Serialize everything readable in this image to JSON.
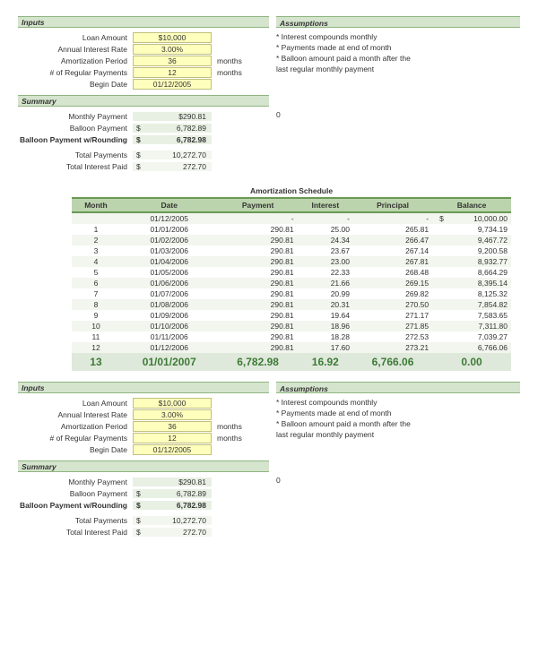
{
  "colors": {
    "headerBg": "#d5e4cd",
    "headerBorder": "#8fb580",
    "inputBg": "#ffffbd",
    "paleGreen": "#f2f6ee",
    "medGreen": "#e8f0e3",
    "tableHeaderBg": "#bcd4ad",
    "tableBorder": "#6a9a55",
    "totalsBg": "#dfe9db",
    "totalsText": "#3d7a36"
  },
  "fontsize": {
    "base": 8.5,
    "totals": 12
  },
  "inputs": {
    "header": "Inputs",
    "loanAmountLabel": "Loan Amount",
    "loanAmount": "$10,000",
    "rateLabel": "Annual Interest Rate",
    "rate": "3.00%",
    "amortLabel": "Amortization Period",
    "amortPeriod": "36",
    "amortUnit": "months",
    "regLabel": "# of Regular Payments",
    "regPayments": "12",
    "regUnit": "months",
    "beginLabel": "Begin Date",
    "beginDate": "01/12/2005"
  },
  "assumptions": {
    "header": "Assumptions",
    "line1": "* Interest compounds monthly",
    "line2": "* Payments made at end of month",
    "line3": "* Balloon amount paid a month after the",
    "line4": "last regular monthly payment"
  },
  "summary": {
    "header": "Summary",
    "monthlyLabel": "Monthly Payment",
    "monthly": "$290.81",
    "balloonLabel": "Balloon Payment",
    "balloonSym": "$",
    "balloon": "6,782.89",
    "balloonRoundLabel": "Balloon Payment w/Rounding",
    "balloonRoundSym": "$",
    "balloonRound": "6,782.98",
    "totalPayLabel": "Total Payments",
    "totalPaySym": "$",
    "totalPay": "10,272.70",
    "totalIntLabel": "Total Interest Paid",
    "totalIntSym": "$",
    "totalInt": "272.70",
    "zeroNote": "0"
  },
  "schedule": {
    "title": "Amortization Schedule",
    "headers": {
      "month": "Month",
      "date": "Date",
      "payment": "Payment",
      "interest": "Interest",
      "principal": "Principal",
      "balance": "Balance"
    },
    "openingRow": {
      "date": "01/12/2005",
      "payment": "-",
      "interest": "-",
      "principal": "-",
      "balanceSym": "$",
      "balance": "10,000.00"
    },
    "rows": [
      {
        "m": "1",
        "d": "01/01/2006",
        "p": "290.81",
        "i": "25.00",
        "pr": "265.81",
        "b": "9,734.19"
      },
      {
        "m": "2",
        "d": "01/02/2006",
        "p": "290.81",
        "i": "24.34",
        "pr": "266.47",
        "b": "9,467.72"
      },
      {
        "m": "3",
        "d": "01/03/2006",
        "p": "290.81",
        "i": "23.67",
        "pr": "267.14",
        "b": "9,200.58"
      },
      {
        "m": "4",
        "d": "01/04/2006",
        "p": "290.81",
        "i": "23.00",
        "pr": "267.81",
        "b": "8,932.77"
      },
      {
        "m": "5",
        "d": "01/05/2006",
        "p": "290.81",
        "i": "22.33",
        "pr": "268.48",
        "b": "8,664.29"
      },
      {
        "m": "6",
        "d": "01/06/2006",
        "p": "290.81",
        "i": "21.66",
        "pr": "269.15",
        "b": "8,395.14"
      },
      {
        "m": "7",
        "d": "01/07/2006",
        "p": "290.81",
        "i": "20.99",
        "pr": "269.82",
        "b": "8,125.32"
      },
      {
        "m": "8",
        "d": "01/08/2006",
        "p": "290.81",
        "i": "20.31",
        "pr": "270.50",
        "b": "7,854.82"
      },
      {
        "m": "9",
        "d": "01/09/2006",
        "p": "290.81",
        "i": "19.64",
        "pr": "271.17",
        "b": "7,583.65"
      },
      {
        "m": "10",
        "d": "01/10/2006",
        "p": "290.81",
        "i": "18.96",
        "pr": "271.85",
        "b": "7,311.80"
      },
      {
        "m": "11",
        "d": "01/11/2006",
        "p": "290.81",
        "i": "18.28",
        "pr": "272.53",
        "b": "7,039.27"
      },
      {
        "m": "12",
        "d": "01/12/2006",
        "p": "290.81",
        "i": "17.60",
        "pr": "273.21",
        "b": "6,766.06"
      }
    ],
    "totals": {
      "m": "13",
      "d": "01/01/2007",
      "p": "6,782.98",
      "i": "16.92",
      "pr": "6,766.06",
      "b": "0.00"
    }
  }
}
